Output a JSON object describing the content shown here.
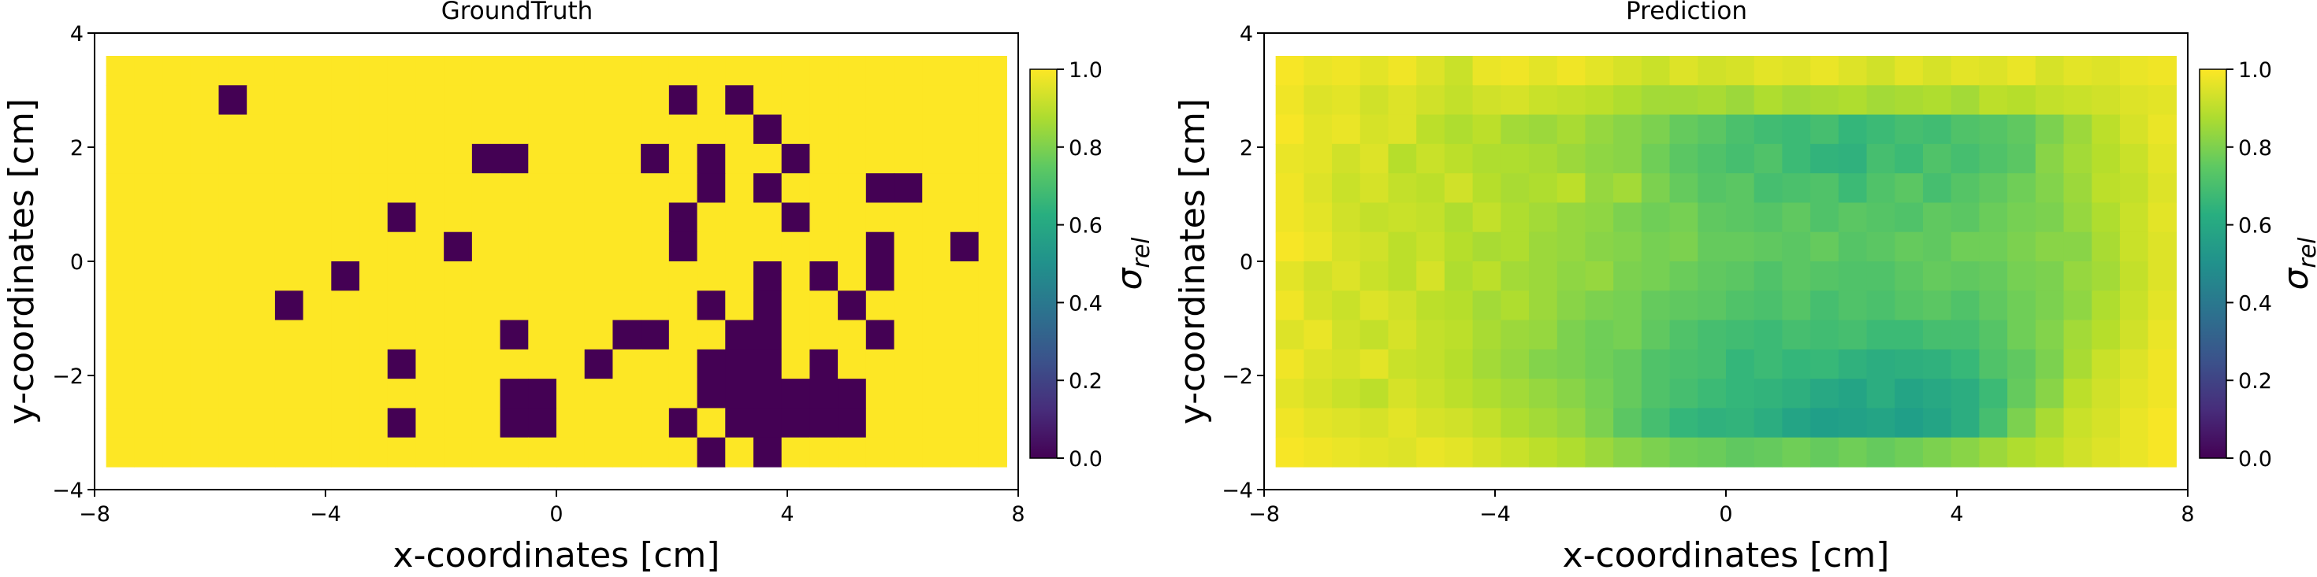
{
  "chart_data": [
    {
      "type": "heatmap",
      "title": "GroundTruth",
      "xlabel": "x-coordinates [cm]",
      "ylabel": "y-coordinates [cm]",
      "xlim": [
        -8,
        8
      ],
      "ylim": [
        -4,
        4
      ],
      "x_range": [
        -7.8,
        7.8
      ],
      "y_range": [
        -3.6,
        3.6
      ],
      "nx": 32,
      "ny": 14,
      "xticks": [
        "−8",
        "−4",
        "0",
        "4",
        "8"
      ],
      "yticks": [
        "−4",
        "−2",
        "0",
        "2",
        "4"
      ],
      "colorbar": {
        "label": "σrel",
        "range": [
          0,
          1
        ],
        "ticks": [
          "0.0",
          "0.2",
          "0.4",
          "0.6",
          "0.8",
          "1.0"
        ]
      },
      "colormap": "viridis",
      "grid": "rows listed from top (y=3.6) to bottom (y=-3.6); each row lists 32 cell values from x=-7.8 to x=7.8",
      "values": [
        [
          1,
          1,
          1,
          1,
          1,
          1,
          1,
          1,
          1,
          1,
          1,
          1,
          1,
          1,
          1,
          1,
          1,
          1,
          1,
          1,
          1,
          1,
          1,
          1,
          1,
          1,
          1,
          1,
          1,
          1,
          1,
          1
        ],
        [
          1,
          1,
          1,
          1,
          0,
          1,
          1,
          1,
          1,
          1,
          1,
          1,
          1,
          1,
          1,
          1,
          1,
          1,
          1,
          1,
          0,
          1,
          0,
          1,
          1,
          1,
          1,
          1,
          1,
          1,
          1,
          1
        ],
        [
          1,
          1,
          1,
          1,
          1,
          1,
          1,
          1,
          1,
          1,
          1,
          1,
          1,
          1,
          1,
          1,
          1,
          1,
          1,
          1,
          1,
          1,
          1,
          0,
          1,
          1,
          1,
          1,
          1,
          1,
          1,
          1
        ],
        [
          1,
          1,
          1,
          1,
          1,
          1,
          1,
          1,
          1,
          1,
          1,
          1,
          1,
          0,
          0,
          1,
          1,
          1,
          1,
          0,
          1,
          0,
          1,
          1,
          0,
          1,
          1,
          1,
          1,
          1,
          1,
          1
        ],
        [
          1,
          1,
          1,
          1,
          1,
          1,
          1,
          1,
          1,
          1,
          1,
          1,
          1,
          1,
          1,
          1,
          1,
          1,
          1,
          1,
          1,
          0,
          1,
          0,
          1,
          1,
          1,
          0,
          0,
          1,
          1,
          1
        ],
        [
          1,
          1,
          1,
          1,
          1,
          1,
          1,
          1,
          1,
          1,
          0,
          1,
          1,
          1,
          1,
          1,
          1,
          1,
          1,
          1,
          0,
          1,
          1,
          1,
          0,
          1,
          1,
          1,
          1,
          1,
          1,
          1
        ],
        [
          1,
          1,
          1,
          1,
          1,
          1,
          1,
          1,
          1,
          1,
          1,
          1,
          0,
          1,
          1,
          1,
          1,
          1,
          1,
          1,
          0,
          1,
          1,
          1,
          1,
          1,
          1,
          0,
          1,
          1,
          0,
          1
        ],
        [
          1,
          1,
          1,
          1,
          1,
          1,
          1,
          1,
          0,
          1,
          1,
          1,
          1,
          1,
          1,
          1,
          1,
          1,
          1,
          1,
          1,
          1,
          1,
          0,
          1,
          0,
          1,
          0,
          1,
          1,
          1,
          1
        ],
        [
          1,
          1,
          1,
          1,
          1,
          1,
          0,
          1,
          1,
          1,
          1,
          1,
          1,
          1,
          1,
          1,
          1,
          1,
          1,
          1,
          1,
          0,
          1,
          0,
          1,
          1,
          0,
          1,
          1,
          1,
          1,
          1
        ],
        [
          1,
          1,
          1,
          1,
          1,
          1,
          1,
          1,
          1,
          1,
          1,
          1,
          1,
          1,
          0,
          1,
          1,
          1,
          0,
          0,
          1,
          1,
          0,
          0,
          1,
          1,
          1,
          0,
          1,
          1,
          1,
          1
        ],
        [
          1,
          1,
          1,
          1,
          1,
          1,
          1,
          1,
          1,
          1,
          0,
          1,
          1,
          1,
          1,
          1,
          1,
          0,
          1,
          1,
          1,
          0,
          0,
          0,
          1,
          0,
          1,
          1,
          1,
          1,
          1,
          1
        ],
        [
          1,
          1,
          1,
          1,
          1,
          1,
          1,
          1,
          1,
          1,
          1,
          1,
          1,
          1,
          0,
          0,
          1,
          1,
          1,
          1,
          1,
          0,
          0,
          0,
          0,
          0,
          0,
          1,
          1,
          1,
          1,
          1
        ],
        [
          1,
          1,
          1,
          1,
          1,
          1,
          1,
          1,
          1,
          1,
          0,
          1,
          1,
          1,
          0,
          0,
          1,
          1,
          1,
          1,
          0,
          1,
          0,
          0,
          0,
          0,
          0,
          1,
          1,
          1,
          1,
          1
        ],
        [
          1,
          1,
          1,
          1,
          1,
          1,
          1,
          1,
          1,
          1,
          1,
          1,
          1,
          1,
          1,
          1,
          1,
          1,
          1,
          1,
          1,
          0,
          1,
          0,
          1,
          1,
          1,
          1,
          1,
          1,
          1,
          1
        ]
      ]
    },
    {
      "type": "heatmap",
      "title": "Prediction",
      "xlabel": "x-coordinates [cm]",
      "ylabel": "y-coordinates [cm]",
      "xlim": [
        -8,
        8
      ],
      "ylim": [
        -4,
        4
      ],
      "x_range": [
        -7.8,
        7.8
      ],
      "y_range": [
        -3.6,
        3.6
      ],
      "nx": 32,
      "ny": 14,
      "xticks": [
        "−8",
        "−4",
        "0",
        "4",
        "8"
      ],
      "yticks": [
        "−4",
        "−2",
        "0",
        "2",
        "4"
      ],
      "colorbar": {
        "label": "σrel",
        "range": [
          0,
          1
        ],
        "ticks": [
          "0.0",
          "0.2",
          "0.4",
          "0.6",
          "0.8",
          "1.0"
        ]
      },
      "colormap": "viridis",
      "grid": "rows listed from top (y=3.6) to bottom (y=-3.6); each row lists 32 cell values from x=-7.8 to x=7.8",
      "values": [
        [
          0.99,
          0.97,
          0.98,
          0.96,
          0.98,
          0.95,
          0.92,
          0.97,
          0.98,
          0.96,
          0.98,
          0.96,
          0.94,
          0.92,
          0.95,
          0.93,
          0.94,
          0.96,
          0.95,
          0.97,
          0.95,
          0.93,
          0.96,
          0.94,
          0.96,
          0.95,
          0.97,
          0.94,
          0.96,
          0.95,
          0.97,
          0.98
        ],
        [
          0.98,
          0.95,
          0.96,
          0.93,
          0.95,
          0.93,
          0.91,
          0.93,
          0.94,
          0.92,
          0.91,
          0.9,
          0.88,
          0.86,
          0.86,
          0.87,
          0.85,
          0.88,
          0.86,
          0.87,
          0.88,
          0.86,
          0.87,
          0.88,
          0.86,
          0.9,
          0.89,
          0.91,
          0.92,
          0.93,
          0.95,
          0.96
        ],
        [
          0.99,
          0.96,
          0.97,
          0.94,
          0.95,
          0.9,
          0.88,
          0.9,
          0.86,
          0.85,
          0.87,
          0.84,
          0.82,
          0.8,
          0.76,
          0.74,
          0.71,
          0.69,
          0.68,
          0.7,
          0.66,
          0.68,
          0.7,
          0.69,
          0.72,
          0.73,
          0.75,
          0.8,
          0.85,
          0.9,
          0.94,
          0.97
        ],
        [
          0.97,
          0.96,
          0.93,
          0.95,
          0.89,
          0.92,
          0.9,
          0.88,
          0.88,
          0.87,
          0.85,
          0.83,
          0.82,
          0.78,
          0.74,
          0.72,
          0.7,
          0.72,
          0.68,
          0.65,
          0.64,
          0.7,
          0.68,
          0.72,
          0.7,
          0.72,
          0.74,
          0.82,
          0.86,
          0.89,
          0.92,
          0.96
        ],
        [
          0.98,
          0.95,
          0.92,
          0.94,
          0.91,
          0.9,
          0.93,
          0.89,
          0.87,
          0.88,
          0.9,
          0.84,
          0.86,
          0.8,
          0.76,
          0.73,
          0.74,
          0.7,
          0.71,
          0.72,
          0.68,
          0.72,
          0.74,
          0.7,
          0.73,
          0.75,
          0.78,
          0.81,
          0.85,
          0.9,
          0.91,
          0.95
        ],
        [
          0.98,
          0.96,
          0.93,
          0.91,
          0.92,
          0.91,
          0.88,
          0.91,
          0.88,
          0.86,
          0.84,
          0.83,
          0.8,
          0.78,
          0.79,
          0.75,
          0.74,
          0.73,
          0.75,
          0.72,
          0.74,
          0.73,
          0.72,
          0.75,
          0.74,
          0.77,
          0.79,
          0.8,
          0.84,
          0.88,
          0.92,
          0.96
        ],
        [
          0.99,
          0.97,
          0.94,
          0.93,
          0.9,
          0.92,
          0.89,
          0.87,
          0.88,
          0.85,
          0.84,
          0.82,
          0.81,
          0.79,
          0.8,
          0.76,
          0.76,
          0.75,
          0.74,
          0.76,
          0.73,
          0.74,
          0.76,
          0.75,
          0.78,
          0.78,
          0.8,
          0.82,
          0.82,
          0.87,
          0.92,
          0.95
        ],
        [
          0.96,
          0.93,
          0.95,
          0.92,
          0.9,
          0.94,
          0.88,
          0.9,
          0.86,
          0.85,
          0.83,
          0.84,
          0.8,
          0.79,
          0.77,
          0.75,
          0.74,
          0.72,
          0.74,
          0.73,
          0.72,
          0.72,
          0.74,
          0.76,
          0.75,
          0.76,
          0.79,
          0.8,
          0.84,
          0.86,
          0.91,
          0.95
        ],
        [
          0.98,
          0.94,
          0.92,
          0.95,
          0.93,
          0.9,
          0.89,
          0.86,
          0.88,
          0.85,
          0.82,
          0.8,
          0.79,
          0.76,
          0.75,
          0.74,
          0.72,
          0.71,
          0.73,
          0.7,
          0.72,
          0.71,
          0.73,
          0.74,
          0.72,
          0.75,
          0.78,
          0.8,
          0.83,
          0.88,
          0.92,
          0.96
        ],
        [
          0.95,
          0.97,
          0.93,
          0.91,
          0.94,
          0.91,
          0.9,
          0.87,
          0.85,
          0.84,
          0.8,
          0.78,
          0.79,
          0.75,
          0.72,
          0.7,
          0.69,
          0.68,
          0.7,
          0.69,
          0.7,
          0.68,
          0.68,
          0.7,
          0.7,
          0.73,
          0.78,
          0.81,
          0.86,
          0.89,
          0.93,
          0.97
        ],
        [
          0.98,
          0.95,
          0.94,
          0.96,
          0.92,
          0.91,
          0.89,
          0.86,
          0.84,
          0.81,
          0.8,
          0.78,
          0.76,
          0.72,
          0.71,
          0.7,
          0.66,
          0.68,
          0.66,
          0.67,
          0.64,
          0.62,
          0.63,
          0.64,
          0.67,
          0.72,
          0.75,
          0.8,
          0.87,
          0.92,
          0.95,
          0.98
        ],
        [
          0.96,
          0.94,
          0.92,
          0.9,
          0.94,
          0.92,
          0.9,
          0.88,
          0.86,
          0.84,
          0.82,
          0.79,
          0.76,
          0.72,
          0.7,
          0.68,
          0.66,
          0.65,
          0.63,
          0.6,
          0.58,
          0.62,
          0.58,
          0.6,
          0.62,
          0.68,
          0.76,
          0.82,
          0.9,
          0.93,
          0.96,
          0.98
        ],
        [
          0.98,
          0.96,
          0.95,
          0.94,
          0.96,
          0.94,
          0.93,
          0.91,
          0.88,
          0.86,
          0.84,
          0.8,
          0.74,
          0.7,
          0.66,
          0.64,
          0.65,
          0.62,
          0.58,
          0.56,
          0.57,
          0.58,
          0.56,
          0.58,
          0.62,
          0.7,
          0.8,
          0.87,
          0.92,
          0.94,
          0.97,
          0.99
        ],
        [
          0.99,
          0.98,
          0.97,
          0.96,
          0.95,
          0.97,
          0.96,
          0.94,
          0.92,
          0.9,
          0.88,
          0.85,
          0.82,
          0.8,
          0.78,
          0.77,
          0.75,
          0.76,
          0.78,
          0.76,
          0.78,
          0.76,
          0.78,
          0.8,
          0.82,
          0.85,
          0.88,
          0.9,
          0.93,
          0.95,
          0.97,
          0.99
        ]
      ]
    }
  ]
}
